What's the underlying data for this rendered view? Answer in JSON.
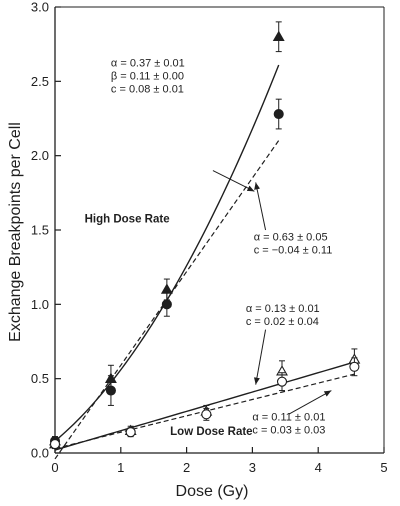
{
  "chart_data": {
    "type": "scatter",
    "xlabel": "Dose (Gy)",
    "ylabel": "Exchange Breakpoints per Cell",
    "xlim": [
      0,
      5
    ],
    "ylim": [
      0,
      3
    ],
    "xticks": [
      "0",
      "1",
      "2",
      "3",
      "4",
      "5"
    ],
    "yticks": [
      "0.0",
      "0.5",
      "1.0",
      "1.5",
      "2.0",
      "2.5",
      "3.0"
    ],
    "grid": false,
    "regions": [
      {
        "label": "High Dose Rate",
        "x": 0.45,
        "y": 1.55
      },
      {
        "label": "Low Dose Rate",
        "x": 1.75,
        "y": 0.12
      }
    ],
    "series": [
      {
        "marker": "filled-triangle",
        "points": [
          {
            "x": 0,
            "y": 0.08,
            "err": 0.03
          },
          {
            "x": 0.85,
            "y": 0.5,
            "err": 0.09
          },
          {
            "x": 1.7,
            "y": 1.1,
            "err": 0.07
          },
          {
            "x": 3.4,
            "y": 2.8,
            "err": 0.1
          }
        ]
      },
      {
        "marker": "filled-circle",
        "points": [
          {
            "x": 0,
            "y": 0.08,
            "err": 0.03
          },
          {
            "x": 0.85,
            "y": 0.42,
            "err": 0.1
          },
          {
            "x": 1.7,
            "y": 1.0,
            "err": 0.08
          },
          {
            "x": 3.4,
            "y": 2.28,
            "err": 0.1
          }
        ]
      },
      {
        "marker": "open-triangle",
        "points": [
          {
            "x": 0,
            "y": 0.06,
            "err": 0.03
          },
          {
            "x": 1.15,
            "y": 0.15,
            "err": 0.03
          },
          {
            "x": 2.3,
            "y": 0.28,
            "err": 0.04
          },
          {
            "x": 3.45,
            "y": 0.55,
            "err": 0.07
          },
          {
            "x": 4.55,
            "y": 0.63,
            "err": 0.07
          }
        ]
      },
      {
        "marker": "open-circle",
        "points": [
          {
            "x": 0,
            "y": 0.06,
            "err": 0.03
          },
          {
            "x": 1.15,
            "y": 0.14,
            "err": 0.03
          },
          {
            "x": 2.3,
            "y": 0.26,
            "err": 0.04
          },
          {
            "x": 3.45,
            "y": 0.48,
            "err": 0.06
          },
          {
            "x": 4.55,
            "y": 0.58,
            "err": 0.06
          }
        ]
      }
    ],
    "fits": [
      {
        "style": "solid",
        "form": "quadratic",
        "alpha": 0.37,
        "beta": 0.11,
        "c": 0.08,
        "x_range": [
          0,
          3.4
        ]
      },
      {
        "style": "dashed",
        "form": "linear",
        "alpha": 0.63,
        "c": -0.04,
        "x_range": [
          0,
          3.4
        ]
      },
      {
        "style": "solid",
        "form": "linear",
        "alpha": 0.13,
        "c": 0.02,
        "x_range": [
          0,
          4.6
        ]
      },
      {
        "style": "dashed",
        "form": "linear",
        "alpha": 0.11,
        "c": 0.03,
        "x_range": [
          0,
          4.6
        ]
      }
    ],
    "annotations": [
      {
        "lines": [
          "α = 0.37 ± 0.01",
          "β = 0.11 ± 0.00",
          "c = 0.08 ± 0.01"
        ],
        "text_at": [
          0.85,
          2.6
        ],
        "arrow_from": [
          2.4,
          1.9
        ],
        "arrow_to": [
          3.03,
          1.76
        ]
      },
      {
        "lines": [
          "α = 0.63 ± 0.05",
          "c = −0.04 ± 0.11"
        ],
        "text_at": [
          3.02,
          1.43
        ],
        "arrow_from": [
          3.2,
          1.5
        ],
        "arrow_to": [
          3.05,
          1.82
        ]
      },
      {
        "lines": [
          "α = 0.13 ± 0.01",
          "c = 0.02 ± 0.04"
        ],
        "text_at": [
          2.9,
          0.95
        ],
        "arrow_from": [
          3.2,
          0.83
        ],
        "arrow_to": [
          3.05,
          0.46
        ]
      },
      {
        "lines": [
          "α = 0.11 ± 0.01",
          "c = 0.03 ± 0.03"
        ],
        "text_at": [
          3.0,
          0.22
        ],
        "arrow_from": [
          3.55,
          0.26
        ],
        "arrow_to": [
          4.2,
          0.42
        ]
      }
    ]
  }
}
